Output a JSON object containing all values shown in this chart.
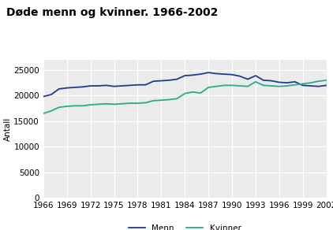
{
  "title": "Døde menn og kvinner. 1966-2002",
  "ylabel": "Antall",
  "years": [
    1966,
    1967,
    1968,
    1969,
    1970,
    1971,
    1972,
    1973,
    1974,
    1975,
    1976,
    1977,
    1978,
    1979,
    1980,
    1981,
    1982,
    1983,
    1984,
    1985,
    1986,
    1987,
    1988,
    1989,
    1990,
    1991,
    1992,
    1993,
    1994,
    1995,
    1996,
    1997,
    1998,
    1999,
    2000,
    2001,
    2002
  ],
  "menn": [
    19800,
    20200,
    21300,
    21500,
    21600,
    21700,
    21900,
    21900,
    22000,
    21800,
    21900,
    22000,
    22100,
    22100,
    22800,
    22900,
    23000,
    23200,
    23900,
    24000,
    24200,
    24500,
    24300,
    24200,
    24100,
    23800,
    23200,
    23900,
    23000,
    22900,
    22600,
    22500,
    22700,
    22000,
    21900,
    21800,
    22000
  ],
  "kvinner": [
    16500,
    17000,
    17700,
    17900,
    18000,
    18000,
    18200,
    18300,
    18400,
    18300,
    18400,
    18500,
    18500,
    18600,
    19000,
    19100,
    19200,
    19400,
    20400,
    20700,
    20500,
    21600,
    21800,
    22000,
    22000,
    21900,
    21800,
    22700,
    22000,
    21900,
    21800,
    21900,
    22100,
    22300,
    22500,
    22800,
    23000
  ],
  "menn_color": "#1f3a8f",
  "kvinner_color": "#2aaa8a",
  "background_color": "#ffffff",
  "plot_bg_color": "#ebebeb",
  "title_color": "#000000",
  "grid_color": "#ffffff",
  "teal_bar_color": "#2aaa8a",
  "bottom_bar_color": "#2aaa8a",
  "ylim": [
    0,
    27000
  ],
  "yticks": [
    0,
    5000,
    10000,
    15000,
    20000,
    25000
  ],
  "xticks": [
    1966,
    1969,
    1972,
    1975,
    1978,
    1981,
    1984,
    1987,
    1990,
    1993,
    1996,
    1999,
    2002
  ],
  "legend_labels": [
    "Menn",
    "Kvinner"
  ],
  "title_fontsize": 10,
  "tick_fontsize": 7.5,
  "ylabel_fontsize": 7.5,
  "line_width": 1.3
}
